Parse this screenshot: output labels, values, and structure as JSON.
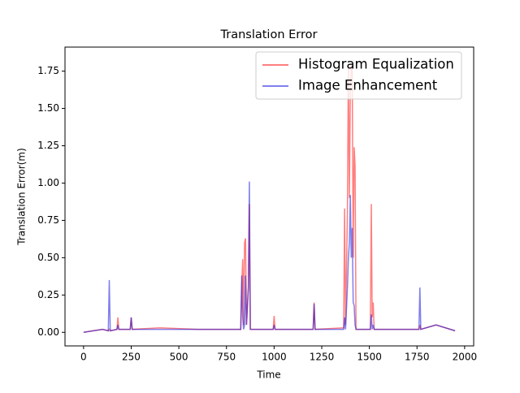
{
  "chart_data": {
    "type": "line",
    "title": "Translation Error",
    "x_label": "Time",
    "y_label": "Translation Error(m)",
    "x": [
      0,
      50,
      100,
      130,
      135,
      140,
      175,
      180,
      185,
      245,
      250,
      255,
      400,
      600,
      700,
      825,
      830,
      835,
      840,
      845,
      850,
      855,
      865,
      870,
      875,
      995,
      1000,
      1005,
      1205,
      1210,
      1215,
      1365,
      1370,
      1375,
      1385,
      1390,
      1395,
      1400,
      1405,
      1410,
      1415,
      1420,
      1425,
      1430,
      1505,
      1510,
      1515,
      1520,
      1525,
      1760,
      1765,
      1770,
      1850,
      1950
    ],
    "series": [
      {
        "name": "Histogram Equalization",
        "color": "#ff0000",
        "values": [
          0,
          0.01,
          0.02,
          0.01,
          0.02,
          0.01,
          0.02,
          0.1,
          0.02,
          0.02,
          0.1,
          0.02,
          0.03,
          0.02,
          0.02,
          0.02,
          0.3,
          0.49,
          0.05,
          0.6,
          0.63,
          0.05,
          0.3,
          0.86,
          0.02,
          0.02,
          0.11,
          0.02,
          0.02,
          0.2,
          0.02,
          0.03,
          0.83,
          0.05,
          0.8,
          1.82,
          0.9,
          1.6,
          1.8,
          1.75,
          0.5,
          1.24,
          1.12,
          0.02,
          0.02,
          0.86,
          0.1,
          0.2,
          0.02,
          0.02,
          0.05,
          0.02,
          0.05,
          0.01
        ]
      },
      {
        "name": "Image Enhancement",
        "color": "#0000dd",
        "values": [
          0,
          0.01,
          0.02,
          0.01,
          0.35,
          0.01,
          0.02,
          0.05,
          0.02,
          0.02,
          0.1,
          0.02,
          0.02,
          0.02,
          0.02,
          0.02,
          0.38,
          0.1,
          0.02,
          0.05,
          0.38,
          0.05,
          0.3,
          1.01,
          0.02,
          0.02,
          0.05,
          0.02,
          0.02,
          0.19,
          0.02,
          0.02,
          0.1,
          0.02,
          0.3,
          0.5,
          0.6,
          0.92,
          0.5,
          0.7,
          0.2,
          0.18,
          0.05,
          0.02,
          0.02,
          0.12,
          0.02,
          0.05,
          0.02,
          0.02,
          0.3,
          0.02,
          0.05,
          0.01
        ]
      }
    ],
    "xlim": [
      -97.5,
      2047.5
    ],
    "xticks": [
      0,
      250,
      500,
      750,
      1000,
      1250,
      1500,
      1750,
      2000
    ],
    "ylim": [
      -0.091,
      1.911
    ],
    "yticks": [
      {
        "value": 0,
        "label": "0.00"
      },
      {
        "value": 0.25,
        "label": "0.25"
      },
      {
        "value": 0.5,
        "label": "0.50"
      },
      {
        "value": 0.75,
        "label": "0.75"
      },
      {
        "value": 1,
        "label": "1.00"
      },
      {
        "value": 1.25,
        "label": "1.25"
      },
      {
        "value": 1.5,
        "label": "1.50"
      },
      {
        "value": 1.75,
        "label": "1.75"
      }
    ],
    "legend": "upper right"
  }
}
